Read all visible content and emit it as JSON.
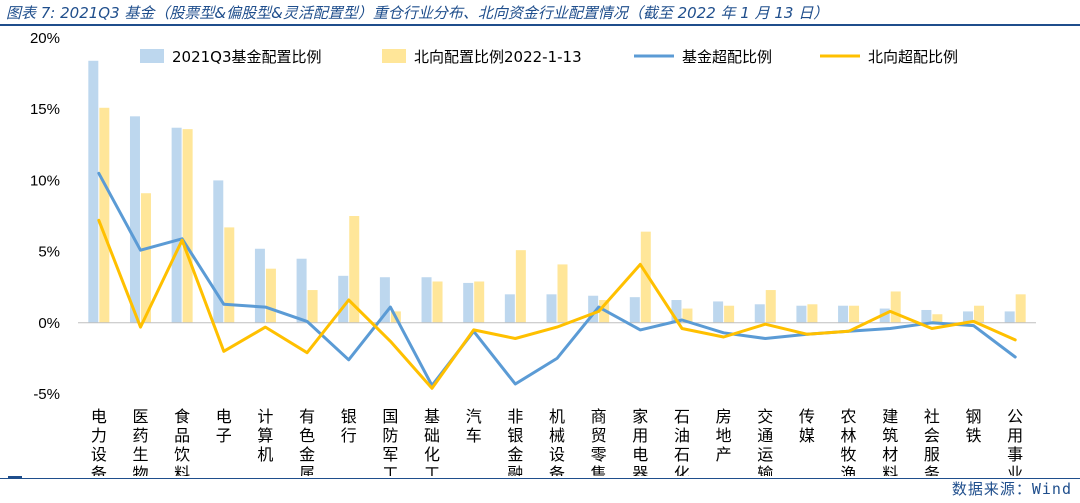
{
  "header": {
    "title": "图表 7: 2021Q3 基金（股票型&偏股型&灵活配置型）重仓行业分布、北向资金行业配置情况（截至 2022 年 1 月 13 日）"
  },
  "footer": {
    "source": "数据来源：Wind"
  },
  "chart_data": {
    "type": "bar",
    "categories": [
      "电力设备",
      "医药生物",
      "食品饮料",
      "电子",
      "计算机",
      "有色金属",
      "银行",
      "国防军工",
      "基础化工",
      "汽车",
      "非银金融",
      "机械设备",
      "商贸零售",
      "家用电器",
      "石油石化",
      "房地产",
      "交通运输",
      "传媒",
      "农林牧渔",
      "建筑材料",
      "社会服务",
      "钢铁",
      "公用事业"
    ],
    "ylim": [
      -5,
      20
    ],
    "yticks": [
      -5,
      0,
      5,
      10,
      15,
      20
    ],
    "ytick_labels": [
      "-5%",
      "0%",
      "5%",
      "10%",
      "15%",
      "20%"
    ],
    "legend_position": "top",
    "grid": false,
    "series": [
      {
        "name": "2021Q3基金配置比例",
        "kind": "bar",
        "color": "#bdd7ee",
        "values": [
          18.4,
          14.5,
          13.7,
          10.0,
          5.2,
          4.5,
          3.3,
          3.2,
          3.2,
          2.8,
          2.0,
          2.0,
          1.9,
          1.8,
          1.6,
          1.5,
          1.3,
          1.2,
          1.2,
          1.0,
          0.9,
          0.8,
          0.8
        ]
      },
      {
        "name": "北向配置比例2022-1-13",
        "kind": "bar",
        "color": "#ffe699",
        "values": [
          15.1,
          9.1,
          13.6,
          6.7,
          3.8,
          2.3,
          7.5,
          0.8,
          2.9,
          2.9,
          5.1,
          4.1,
          1.6,
          6.4,
          1.0,
          1.2,
          2.3,
          1.3,
          1.2,
          2.2,
          0.6,
          1.2,
          2.0
        ]
      },
      {
        "name": "基金超配比例",
        "kind": "line",
        "color": "#5b9bd5",
        "values": [
          10.5,
          5.1,
          5.9,
          1.3,
          1.1,
          0.1,
          -2.6,
          1.1,
          -4.4,
          -0.6,
          -4.3,
          -2.5,
          1.1,
          -0.5,
          0.2,
          -0.7,
          -1.1,
          -0.8,
          -0.6,
          -0.4,
          0.0,
          -0.2,
          -2.4
        ]
      },
      {
        "name": "北向超配比例",
        "kind": "line",
        "color": "#ffc000",
        "values": [
          7.2,
          -0.3,
          5.8,
          -2.0,
          -0.3,
          -2.1,
          1.6,
          -1.3,
          -4.6,
          -0.5,
          -1.1,
          -0.3,
          0.8,
          4.1,
          -0.4,
          -1.0,
          -0.1,
          -0.8,
          -0.6,
          0.8,
          -0.4,
          0.1,
          -1.2
        ]
      }
    ]
  }
}
